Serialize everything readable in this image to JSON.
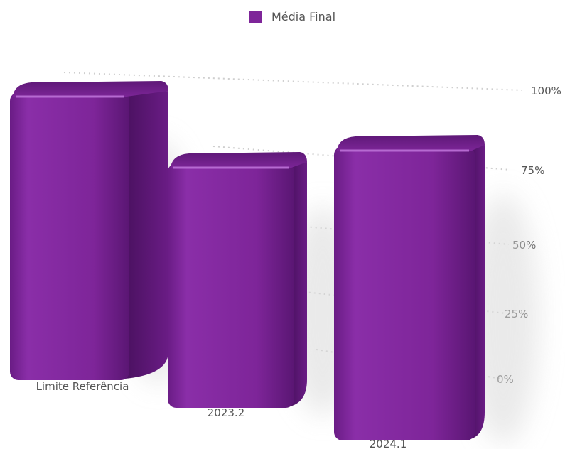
{
  "chart_data": {
    "type": "bar",
    "categories": [
      "Limite Referência",
      "2023.2",
      "2024.1"
    ],
    "series": [
      {
        "name": "Média Final",
        "values": [
          100,
          75,
          90
        ]
      }
    ],
    "y_ticks": [
      "0%",
      "25%",
      "50%",
      "75%",
      "100%"
    ],
    "ylim": [
      0,
      100
    ],
    "legend_position": "top-center",
    "grid": true,
    "colors": {
      "bar": "#7e2599",
      "bar_dark": "#4e1363",
      "bar_light": "#9a3cb5"
    }
  }
}
